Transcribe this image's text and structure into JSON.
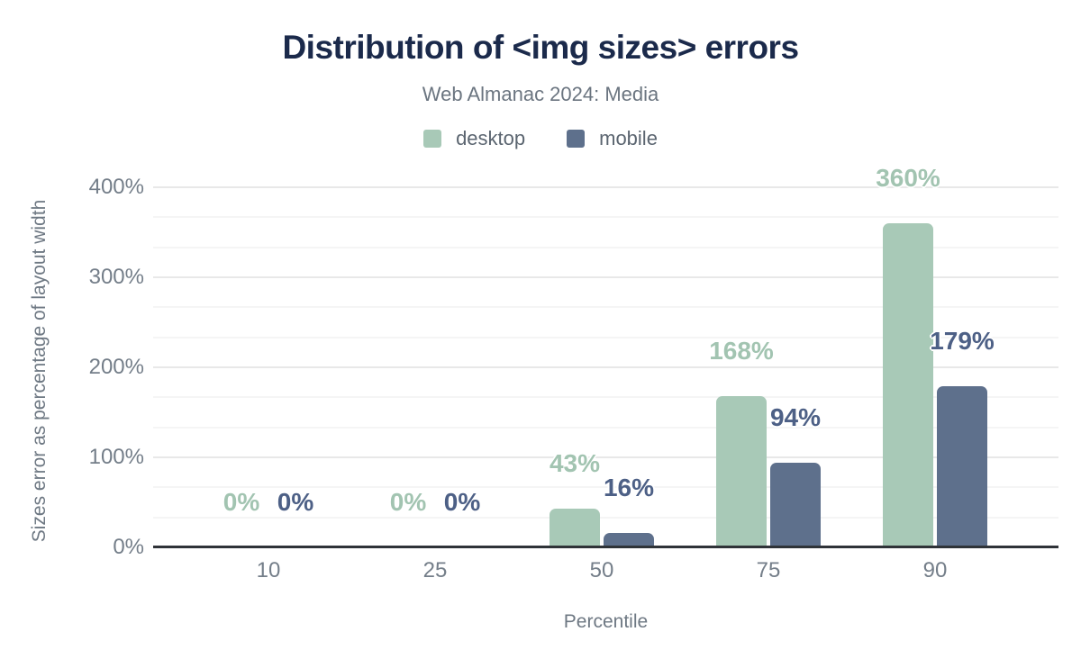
{
  "header": {
    "title": "Distribution of <img sizes> errors",
    "subtitle": "Web Almanac 2024: Media"
  },
  "legend": {
    "items": [
      {
        "label": "desktop",
        "color": "#a8c9b7"
      },
      {
        "label": "mobile",
        "color": "#5e708c"
      }
    ]
  },
  "colors": {
    "title": "#1b2a4b",
    "axis_text": "#747e89",
    "axis_line": "#2f3338",
    "gridline_major": "#e8e8e8",
    "gridline_minor": "#f5f5f5"
  },
  "chart_data": {
    "type": "bar",
    "title": "Distribution of <img sizes> errors",
    "subtitle": "Web Almanac 2024: Media",
    "categories": [
      "10",
      "25",
      "50",
      "75",
      "90"
    ],
    "series": [
      {
        "name": "desktop",
        "color": "#a8c9b7",
        "label_color": "#a2c4b1",
        "values": [
          0,
          0,
          43,
          168,
          360
        ],
        "labels": [
          "0%",
          "0%",
          "43%",
          "168%",
          "360%"
        ]
      },
      {
        "name": "mobile",
        "color": "#5e708c",
        "label_color": "#4d6086",
        "values": [
          0,
          0,
          16,
          94,
          179
        ],
        "labels": [
          "0%",
          "0%",
          "16%",
          "94%",
          "179%"
        ]
      }
    ],
    "xlabel": "Percentile",
    "ylabel": "Sizes error as percentage of layout width",
    "ylim": [
      0,
      400
    ],
    "yticks": [
      {
        "value": 0,
        "label": "0%"
      },
      {
        "value": 100,
        "label": "100%"
      },
      {
        "value": 200,
        "label": "200%"
      },
      {
        "value": 300,
        "label": "300%"
      },
      {
        "value": 400,
        "label": "400%"
      }
    ],
    "grid": {
      "major_step": 100,
      "minor_divisions": 3
    },
    "legend_position": "top"
  }
}
